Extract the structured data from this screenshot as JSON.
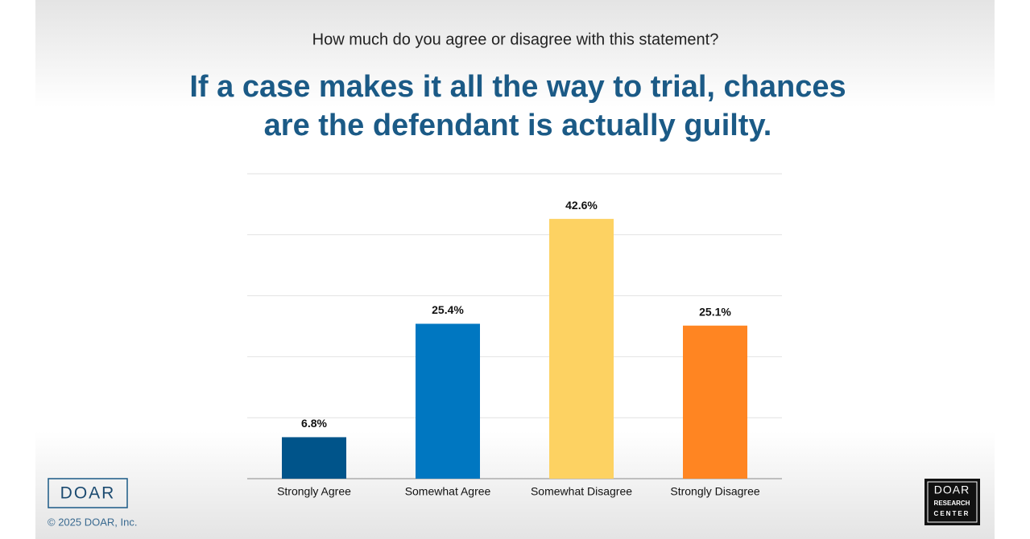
{
  "chart_data": {
    "type": "bar",
    "subtitle": "How much do you agree or disagree with this statement?",
    "title": [
      "If a case makes it all the way to trial, chances",
      "are the defendant is actually guilty."
    ],
    "categories": [
      "Strongly Agree",
      "Somewhat Agree",
      "Somewhat Disagree",
      "Strongly Disagree"
    ],
    "values": [
      6.8,
      25.4,
      42.6,
      25.1
    ],
    "value_labels": [
      "6.8%",
      "25.4%",
      "42.6%",
      "25.1%"
    ],
    "colors": [
      "#00548a",
      "#0077c1",
      "#fdd262",
      "#ff8522"
    ],
    "ylim": [
      0,
      50
    ],
    "yticks": [
      0,
      10,
      20,
      30,
      40,
      50
    ],
    "grid": true
  },
  "brand": "DOAR",
  "copyright": "© 2025 DOAR, Inc.",
  "badge": [
    "DOAR",
    "RESEARCH",
    "CENTER"
  ]
}
